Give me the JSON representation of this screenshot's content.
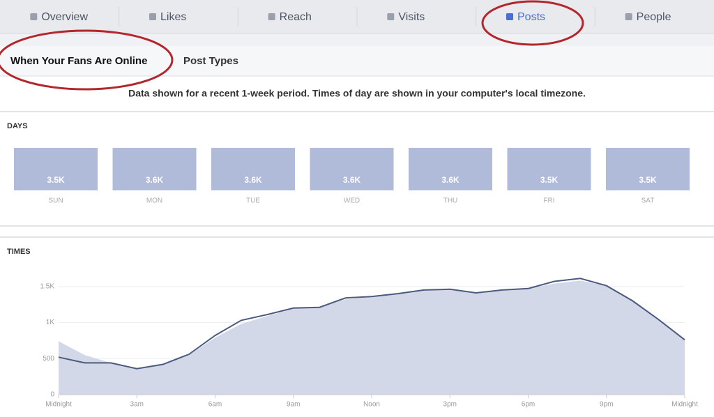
{
  "nav_tabs": [
    "Overview",
    "Likes",
    "Reach",
    "Visits",
    "Posts",
    "People"
  ],
  "active_tab": 4,
  "sub_tabs": [
    "When Your Fans Are Online",
    "Post Types"
  ],
  "note": "Data shown for a recent 1-week period. Times of day are shown in your computer's local timezone.",
  "chart_data": [
    {
      "type": "tiles",
      "title": "DAYS",
      "categories": [
        "SUN",
        "MON",
        "TUE",
        "WED",
        "THU",
        "FRI",
        "SAT"
      ],
      "values": [
        "3.5K",
        "3.6K",
        "3.6K",
        "3.6K",
        "3.6K",
        "3.5K",
        "3.5K"
      ],
      "color": "#b0bad9"
    },
    {
      "type": "line",
      "title": "TIMES",
      "x": [
        0,
        1,
        2,
        3,
        4,
        5,
        6,
        7,
        8,
        9,
        10,
        11,
        12,
        13,
        14,
        15,
        16,
        17,
        18,
        19,
        20,
        21,
        22,
        23,
        24
      ],
      "series": [
        {
          "color": "#d3d8e8",
          "fill": true,
          "values": [
            740,
            550,
            440,
            370,
            420,
            550,
            790,
            980,
            1090,
            1190,
            1210,
            1320,
            1350,
            1400,
            1440,
            1450,
            1410,
            1440,
            1470,
            1540,
            1580,
            1510,
            1300,
            1040,
            760
          ]
        },
        {
          "color": "#4b5a7e",
          "fill": false,
          "values": [
            520,
            440,
            440,
            360,
            420,
            560,
            820,
            1030,
            1110,
            1200,
            1210,
            1340,
            1360,
            1400,
            1450,
            1460,
            1410,
            1450,
            1470,
            1570,
            1610,
            1510,
            1300,
            1040,
            760
          ]
        }
      ],
      "xlim": [
        0,
        24
      ],
      "xticks": [
        {
          "value": 0,
          "label": "Midnight"
        },
        {
          "value": 3,
          "label": "3am"
        },
        {
          "value": 6,
          "label": "6am"
        },
        {
          "value": 9,
          "label": "9am"
        },
        {
          "value": 12,
          "label": "Noon"
        },
        {
          "value": 15,
          "label": "3pm"
        },
        {
          "value": 18,
          "label": "6pm"
        },
        {
          "value": 21,
          "label": "9pm"
        },
        {
          "value": 24,
          "label": "Midnight"
        }
      ],
      "ylim": [
        0,
        1700
      ],
      "yticks": [
        0,
        500,
        {
          "value": 1000,
          "label": "1K"
        },
        {
          "value": 1500,
          "label": "1.5K"
        }
      ],
      "grid": true
    }
  ]
}
